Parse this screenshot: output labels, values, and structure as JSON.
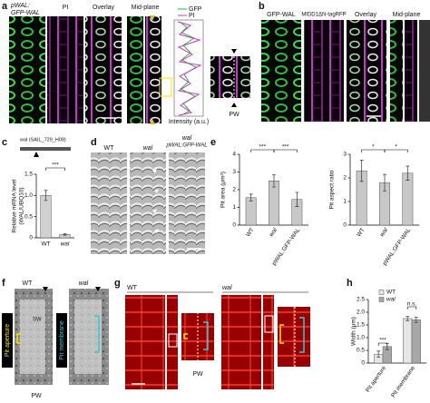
{
  "panel_a": {
    "label": "a",
    "title": [
      "pWAL:",
      "GFP-WAL"
    ],
    "columns": [
      "PI",
      "Overlay",
      "Mid-plane"
    ],
    "legend": [
      "GFP",
      "PI"
    ],
    "x_label": "Intensity (a.u.)",
    "pw": "PW"
  },
  "panel_b": {
    "label": "b",
    "columns": [
      "GFP-WAL",
      "MIDD1ΔN-tagRFP",
      "Overlay",
      "Mid-plane"
    ]
  },
  "panel_c": {
    "label": "c",
    "gene_label": "wal (SAIL_729_H08)",
    "y_label": [
      "Relative mRNA level",
      "(WAL/UBQ10)"
    ],
    "categories": [
      "WT",
      "wal"
    ],
    "series": [
      {
        "color": "#d0d0d0",
        "values": [
          1.0,
          0.08
        ],
        "errors": [
          0.12,
          0.02
        ]
      }
    ],
    "ylim": [
      0,
      1.5
    ],
    "yticks": [
      0,
      0.5,
      {
        "value": 1,
        "label": "1.0"
      },
      1.5
    ],
    "significance": [
      "***"
    ]
  },
  "panel_d": {
    "label": "d",
    "columns": [
      "WT",
      "wal",
      "wal",
      "pWAL:GFP-WAL"
    ]
  },
  "panel_e": {
    "label": "e",
    "charts": [
      {
        "y_label": "Pit area (μm²)",
        "categories": [
          "WT",
          "wal",
          "pWAL:GFP-WAL"
        ],
        "series": [
          {
            "color": "#c8c8c8",
            "values": [
              1.55,
              2.5,
              1.45
            ],
            "errors": [
              0.2,
              0.35,
              0.4
            ]
          }
        ],
        "ylim": [
          0,
          4
        ],
        "yticks": [
          0,
          1,
          2,
          3,
          4
        ],
        "significance": [
          "***",
          "***"
        ]
      },
      {
        "y_label": "Pit aspect ratio",
        "categories": [
          "WT",
          "wal",
          "pWAL:GFP-WAL"
        ],
        "series": [
          {
            "color": "#c8c8c8",
            "values": [
              2.3,
              1.8,
              2.2
            ],
            "errors": [
              0.45,
              0.35,
              0.3
            ]
          }
        ],
        "ylim": [
          0,
          3
        ],
        "yticks": [
          0,
          1,
          2,
          3
        ],
        "significance": [
          "*",
          "*"
        ]
      }
    ]
  },
  "panel_f": {
    "label": "f",
    "columns": [
      "WT",
      "wal"
    ],
    "side_labels": [
      "Pit aperture",
      "Pit membrane"
    ],
    "sw": "SW",
    "pw": "PW"
  },
  "panel_g": {
    "label": "g",
    "columns": [
      "WT",
      "wal"
    ],
    "pw": "PW"
  },
  "panel_h": {
    "label": "h",
    "y_label": "Width (μm)",
    "categories": [
      "Pit aperture",
      "Pit membrane"
    ],
    "series": [
      {
        "name": "WT",
        "color": "#e6e6e6",
        "values": [
          0.35,
          1.75
        ],
        "errors": [
          0.12,
          0.08
        ]
      },
      {
        "name": "wal",
        "color": "#a8a8a8",
        "values": [
          0.65,
          1.7
        ],
        "errors": [
          0.12,
          0.1
        ]
      }
    ],
    "ylim": [
      0,
      2.5
    ],
    "yticks": [
      0,
      0.5,
      {
        "value": 1,
        "label": "1.0"
      },
      1.5,
      {
        "value": 2,
        "label": "2.0"
      },
      2.5
    ],
    "significance": [
      "***",
      "n.s."
    ]
  }
}
